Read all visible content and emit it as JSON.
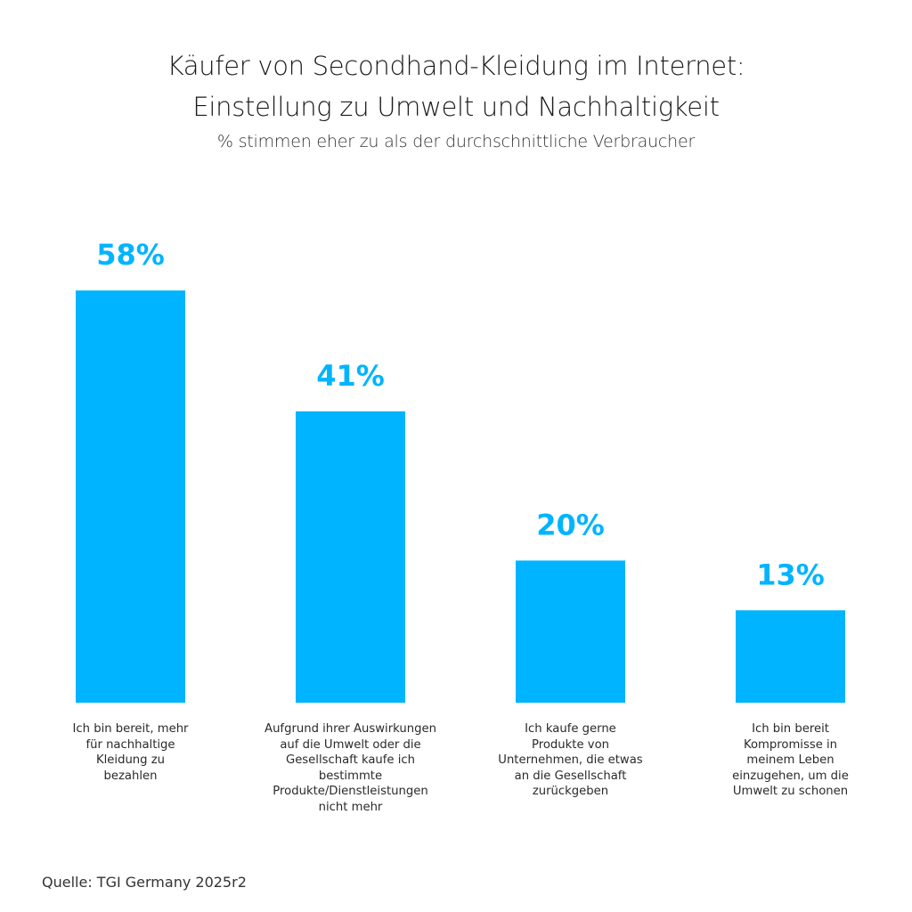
{
  "chart_data": {
    "type": "bar",
    "title": "Käufer von Secondhand-Kleidung im Internet:",
    "title_line2": "Einstellung zu Umwelt und Nachhaltigkeit",
    "subtitle": "% stimmen eher zu als der durchschnittliche Verbraucher",
    "xlabel": "",
    "ylabel": "",
    "ylim": [
      0,
      60
    ],
    "grid": false,
    "bar_color": "#00B4FF",
    "label_color": "#00B4FF",
    "categories": [
      "Ich bin bereit, mehr\nfür nachhaltige\nKleidung zu\nbezahlen",
      "Aufgrund ihrer Auswirkungen\nauf die Umwelt oder die\nGesellschaft kaufe ich\nbestimmte\nProdukte/Dienstleistungen\nnicht mehr",
      "Ich kaufe gerne\nProdukte von\nUnternehmen, die etwas\nan die Gesellschaft\nzurückgeben",
      "Ich bin bereit\nKompromisse in\nmeinem Leben\neinzugehen, um die\nUmwelt zu schonen"
    ],
    "values": [
      58,
      41,
      20,
      13
    ],
    "value_labels": [
      "58%",
      "41%",
      "20%",
      "13%"
    ]
  },
  "source": "Quelle: TGI Germany 2025r2"
}
